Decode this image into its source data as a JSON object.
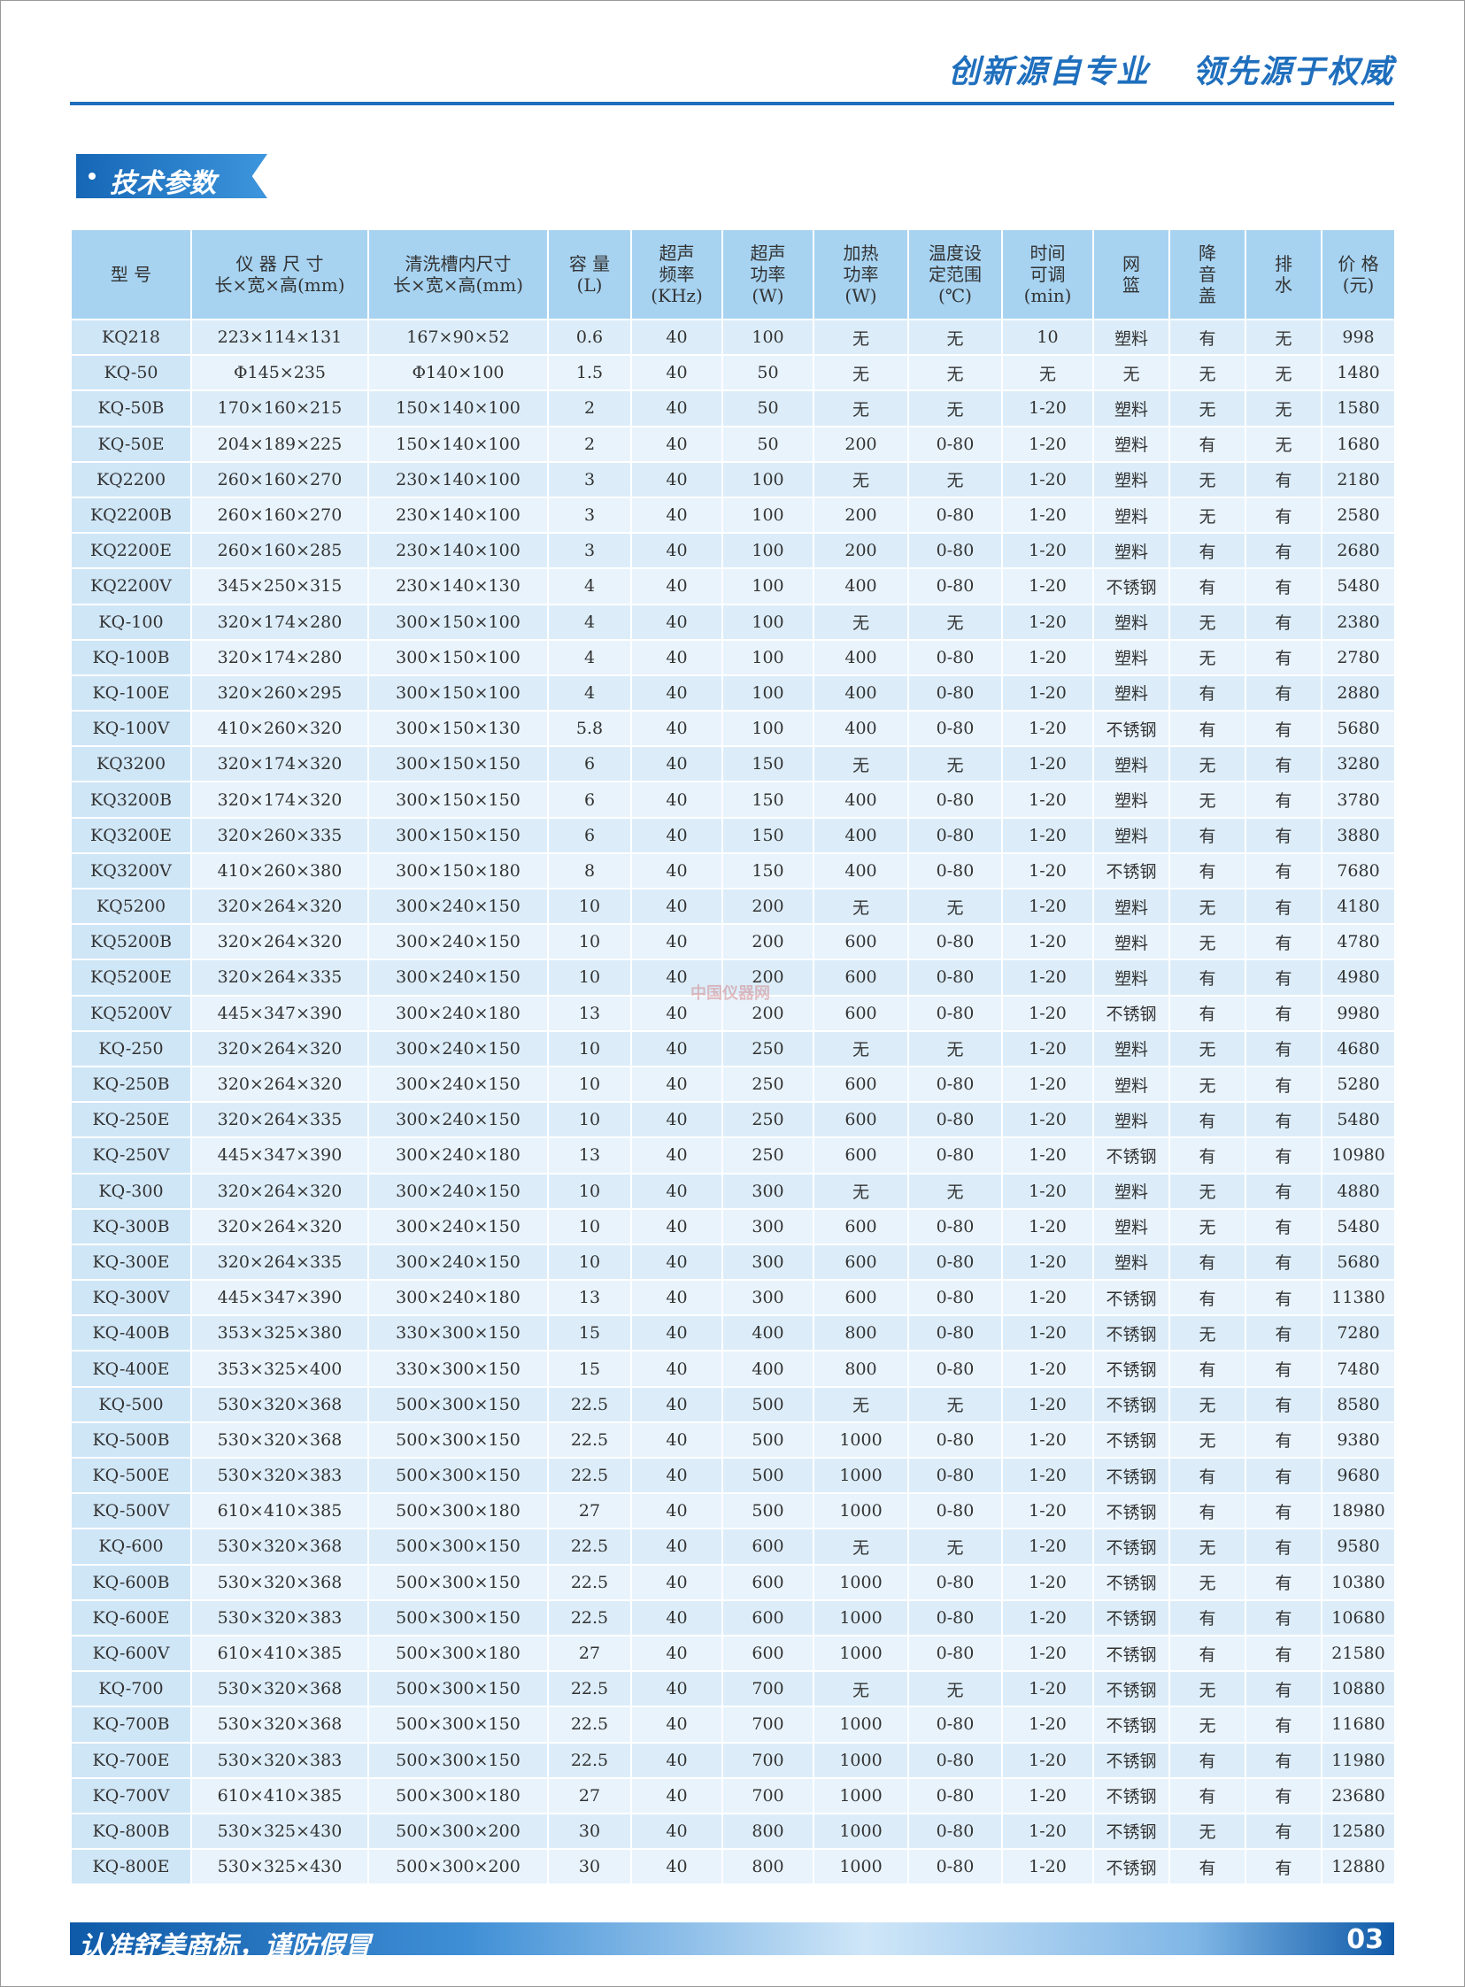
{
  "header": {
    "slogan": [
      "创新源自专业",
      "领先源于权威"
    ]
  },
  "section": {
    "title": "技术参数"
  },
  "table": {
    "headers": [
      [
        "型 号"
      ],
      [
        "仪 器 尺 寸",
        "长×宽×高(mm)"
      ],
      [
        "清洗槽内尺寸",
        "长×宽×高(mm)"
      ],
      [
        "容 量",
        "(L)"
      ],
      [
        "超声",
        "频率",
        "(KHz)"
      ],
      [
        "超声",
        "功率",
        "(W)"
      ],
      [
        "加热",
        "功率",
        "(W)"
      ],
      [
        "温度设",
        "定范围",
        "(℃)"
      ],
      [
        "时间",
        "可调",
        "(min)"
      ],
      [
        "网",
        "篮"
      ],
      [
        "降",
        "音",
        "盖"
      ],
      [
        "排",
        "水"
      ],
      [
        "价 格",
        "(元)"
      ]
    ],
    "rows": [
      [
        "KQ218",
        "223×114×131",
        "167×90×52",
        "0.6",
        "40",
        "100",
        "无",
        "无",
        "10",
        "塑料",
        "有",
        "无",
        "998"
      ],
      [
        "KQ-50",
        "Φ145×235",
        "Φ140×100",
        "1.5",
        "40",
        "50",
        "无",
        "无",
        "无",
        "无",
        "无",
        "无",
        "1480"
      ],
      [
        "KQ-50B",
        "170×160×215",
        "150×140×100",
        "2",
        "40",
        "50",
        "无",
        "无",
        "1-20",
        "塑料",
        "无",
        "无",
        "1580"
      ],
      [
        "KQ-50E",
        "204×189×225",
        "150×140×100",
        "2",
        "40",
        "50",
        "200",
        "0-80",
        "1-20",
        "塑料",
        "有",
        "无",
        "1680"
      ],
      [
        "KQ2200",
        "260×160×270",
        "230×140×100",
        "3",
        "40",
        "100",
        "无",
        "无",
        "1-20",
        "塑料",
        "无",
        "有",
        "2180"
      ],
      [
        "KQ2200B",
        "260×160×270",
        "230×140×100",
        "3",
        "40",
        "100",
        "200",
        "0-80",
        "1-20",
        "塑料",
        "无",
        "有",
        "2580"
      ],
      [
        "KQ2200E",
        "260×160×285",
        "230×140×100",
        "3",
        "40",
        "100",
        "200",
        "0-80",
        "1-20",
        "塑料",
        "有",
        "有",
        "2680"
      ],
      [
        "KQ2200V",
        "345×250×315",
        "230×140×130",
        "4",
        "40",
        "100",
        "400",
        "0-80",
        "1-20",
        "不锈钢",
        "有",
        "有",
        "5480"
      ],
      [
        "KQ-100",
        "320×174×280",
        "300×150×100",
        "4",
        "40",
        "100",
        "无",
        "无",
        "1-20",
        "塑料",
        "无",
        "有",
        "2380"
      ],
      [
        "KQ-100B",
        "320×174×280",
        "300×150×100",
        "4",
        "40",
        "100",
        "400",
        "0-80",
        "1-20",
        "塑料",
        "无",
        "有",
        "2780"
      ],
      [
        "KQ-100E",
        "320×260×295",
        "300×150×100",
        "4",
        "40",
        "100",
        "400",
        "0-80",
        "1-20",
        "塑料",
        "有",
        "有",
        "2880"
      ],
      [
        "KQ-100V",
        "410×260×320",
        "300×150×130",
        "5.8",
        "40",
        "100",
        "400",
        "0-80",
        "1-20",
        "不锈钢",
        "有",
        "有",
        "5680"
      ],
      [
        "KQ3200",
        "320×174×320",
        "300×150×150",
        "6",
        "40",
        "150",
        "无",
        "无",
        "1-20",
        "塑料",
        "无",
        "有",
        "3280"
      ],
      [
        "KQ3200B",
        "320×174×320",
        "300×150×150",
        "6",
        "40",
        "150",
        "400",
        "0-80",
        "1-20",
        "塑料",
        "无",
        "有",
        "3780"
      ],
      [
        "KQ3200E",
        "320×260×335",
        "300×150×150",
        "6",
        "40",
        "150",
        "400",
        "0-80",
        "1-20",
        "塑料",
        "有",
        "有",
        "3880"
      ],
      [
        "KQ3200V",
        "410×260×380",
        "300×150×180",
        "8",
        "40",
        "150",
        "400",
        "0-80",
        "1-20",
        "不锈钢",
        "有",
        "有",
        "7680"
      ],
      [
        "KQ5200",
        "320×264×320",
        "300×240×150",
        "10",
        "40",
        "200",
        "无",
        "无",
        "1-20",
        "塑料",
        "无",
        "有",
        "4180"
      ],
      [
        "KQ5200B",
        "320×264×320",
        "300×240×150",
        "10",
        "40",
        "200",
        "600",
        "0-80",
        "1-20",
        "塑料",
        "无",
        "有",
        "4780"
      ],
      [
        "KQ5200E",
        "320×264×335",
        "300×240×150",
        "10",
        "40",
        "200",
        "600",
        "0-80",
        "1-20",
        "塑料",
        "有",
        "有",
        "4980"
      ],
      [
        "KQ5200V",
        "445×347×390",
        "300×240×180",
        "13",
        "40",
        "200",
        "600",
        "0-80",
        "1-20",
        "不锈钢",
        "有",
        "有",
        "9980"
      ],
      [
        "KQ-250",
        "320×264×320",
        "300×240×150",
        "10",
        "40",
        "250",
        "无",
        "无",
        "1-20",
        "塑料",
        "无",
        "有",
        "4680"
      ],
      [
        "KQ-250B",
        "320×264×320",
        "300×240×150",
        "10",
        "40",
        "250",
        "600",
        "0-80",
        "1-20",
        "塑料",
        "无",
        "有",
        "5280"
      ],
      [
        "KQ-250E",
        "320×264×335",
        "300×240×150",
        "10",
        "40",
        "250",
        "600",
        "0-80",
        "1-20",
        "塑料",
        "有",
        "有",
        "5480"
      ],
      [
        "KQ-250V",
        "445×347×390",
        "300×240×180",
        "13",
        "40",
        "250",
        "600",
        "0-80",
        "1-20",
        "不锈钢",
        "有",
        "有",
        "10980"
      ],
      [
        "KQ-300",
        "320×264×320",
        "300×240×150",
        "10",
        "40",
        "300",
        "无",
        "无",
        "1-20",
        "塑料",
        "无",
        "有",
        "4880"
      ],
      [
        "KQ-300B",
        "320×264×320",
        "300×240×150",
        "10",
        "40",
        "300",
        "600",
        "0-80",
        "1-20",
        "塑料",
        "无",
        "有",
        "5480"
      ],
      [
        "KQ-300E",
        "320×264×335",
        "300×240×150",
        "10",
        "40",
        "300",
        "600",
        "0-80",
        "1-20",
        "塑料",
        "有",
        "有",
        "5680"
      ],
      [
        "KQ-300V",
        "445×347×390",
        "300×240×180",
        "13",
        "40",
        "300",
        "600",
        "0-80",
        "1-20",
        "不锈钢",
        "有",
        "有",
        "11380"
      ],
      [
        "KQ-400B",
        "353×325×380",
        "330×300×150",
        "15",
        "40",
        "400",
        "800",
        "0-80",
        "1-20",
        "不锈钢",
        "无",
        "有",
        "7280"
      ],
      [
        "KQ-400E",
        "353×325×400",
        "330×300×150",
        "15",
        "40",
        "400",
        "800",
        "0-80",
        "1-20",
        "不锈钢",
        "有",
        "有",
        "7480"
      ],
      [
        "KQ-500",
        "530×320×368",
        "500×300×150",
        "22.5",
        "40",
        "500",
        "无",
        "无",
        "1-20",
        "不锈钢",
        "无",
        "有",
        "8580"
      ],
      [
        "KQ-500B",
        "530×320×368",
        "500×300×150",
        "22.5",
        "40",
        "500",
        "1000",
        "0-80",
        "1-20",
        "不锈钢",
        "无",
        "有",
        "9380"
      ],
      [
        "KQ-500E",
        "530×320×383",
        "500×300×150",
        "22.5",
        "40",
        "500",
        "1000",
        "0-80",
        "1-20",
        "不锈钢",
        "有",
        "有",
        "9680"
      ],
      [
        "KQ-500V",
        "610×410×385",
        "500×300×180",
        "27",
        "40",
        "500",
        "1000",
        "0-80",
        "1-20",
        "不锈钢",
        "有",
        "有",
        "18980"
      ],
      [
        "KQ-600",
        "530×320×368",
        "500×300×150",
        "22.5",
        "40",
        "600",
        "无",
        "无",
        "1-20",
        "不锈钢",
        "无",
        "有",
        "9580"
      ],
      [
        "KQ-600B",
        "530×320×368",
        "500×300×150",
        "22.5",
        "40",
        "600",
        "1000",
        "0-80",
        "1-20",
        "不锈钢",
        "无",
        "有",
        "10380"
      ],
      [
        "KQ-600E",
        "530×320×383",
        "500×300×150",
        "22.5",
        "40",
        "600",
        "1000",
        "0-80",
        "1-20",
        "不锈钢",
        "有",
        "有",
        "10680"
      ],
      [
        "KQ-600V",
        "610×410×385",
        "500×300×180",
        "27",
        "40",
        "600",
        "1000",
        "0-80",
        "1-20",
        "不锈钢",
        "有",
        "有",
        "21580"
      ],
      [
        "KQ-700",
        "530×320×368",
        "500×300×150",
        "22.5",
        "40",
        "700",
        "无",
        "无",
        "1-20",
        "不锈钢",
        "无",
        "有",
        "10880"
      ],
      [
        "KQ-700B",
        "530×320×368",
        "500×300×150",
        "22.5",
        "40",
        "700",
        "1000",
        "0-80",
        "1-20",
        "不锈钢",
        "无",
        "有",
        "11680"
      ],
      [
        "KQ-700E",
        "530×320×383",
        "500×300×150",
        "22.5",
        "40",
        "700",
        "1000",
        "0-80",
        "1-20",
        "不锈钢",
        "有",
        "有",
        "11980"
      ],
      [
        "KQ-700V",
        "610×410×385",
        "500×300×180",
        "27",
        "40",
        "700",
        "1000",
        "0-80",
        "1-20",
        "不锈钢",
        "有",
        "有",
        "23680"
      ],
      [
        "KQ-800B",
        "530×325×430",
        "500×300×200",
        "30",
        "40",
        "800",
        "1000",
        "0-80",
        "1-20",
        "不锈钢",
        "无",
        "有",
        "12580"
      ],
      [
        "KQ-800E",
        "530×325×430",
        "500×300×200",
        "30",
        "40",
        "800",
        "1000",
        "0-80",
        "1-20",
        "不锈钢",
        "有",
        "有",
        "12880"
      ]
    ]
  },
  "watermark": "中国仪器网",
  "footer": {
    "notice": "认准舒美商标，谨防假冒",
    "page": "03"
  }
}
